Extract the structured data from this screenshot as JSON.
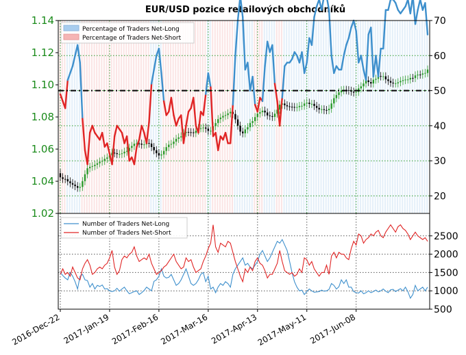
{
  "chart_data": [
    {
      "type": "candlestick-line",
      "title": "EUR/USD pozice retailových obchodníků",
      "y_left": {
        "ticks": [
          "1.02",
          "1.04",
          "1.06",
          "1.08",
          "1.10",
          "1.12",
          "1.14"
        ],
        "range": [
          1.02,
          1.14
        ]
      },
      "y_right": {
        "ticks": [
          "20",
          "30",
          "40",
          "50",
          "60",
          "70"
        ],
        "range": [
          15,
          70
        ]
      },
      "x_ticks": [
        "2016-Dec-22",
        "2017-Jan-19",
        "2017-Feb-16",
        "2017-Mar-16",
        "2017-Apr-13",
        "2017-May-11",
        "2017-Jun-08"
      ],
      "reference_line": 50,
      "grid": true,
      "legend_position": "top-left",
      "legend": [
        {
          "label": "Percentage of Traders Net-Long",
          "color": "#a8cdee"
        },
        {
          "label": "Percentage of Traders Net-Short",
          "color": "#f5b5b5"
        }
      ],
      "colors": {
        "long": "#3d8fcc",
        "short": "#e02424",
        "candle_up": "#2a9a2a",
        "candle_down": "#000000"
      },
      "net_long_percent": [
        49,
        47,
        45,
        53,
        55,
        57,
        60,
        63,
        58,
        42,
        33,
        29,
        38,
        40,
        38,
        37,
        36,
        38,
        34,
        35,
        32,
        29,
        37,
        40,
        39,
        38,
        35,
        37,
        30,
        31,
        29,
        34,
        36,
        40,
        38,
        35,
        41,
        52,
        56,
        60,
        62,
        55,
        47,
        43,
        44,
        48,
        43,
        40,
        42,
        43,
        35,
        40,
        44,
        45,
        48,
        40,
        38,
        44,
        43,
        49,
        55,
        51,
        37,
        38,
        33,
        37,
        36,
        38,
        35,
        35,
        46,
        60,
        70,
        77,
        71,
        56,
        58,
        50,
        54,
        46,
        44,
        48,
        47,
        57,
        64,
        61,
        63,
        52,
        47,
        40,
        48,
        57,
        58,
        58,
        59,
        61,
        60,
        58,
        61,
        55,
        58,
        65,
        63,
        71,
        74,
        76,
        73,
        77,
        77,
        73,
        60,
        55,
        57,
        56,
        56,
        60,
        63,
        65,
        68,
        70,
        67,
        58,
        60,
        56,
        53,
        66,
        68,
        54,
        60,
        54,
        62,
        62,
        73,
        73,
        76,
        76,
        75,
        73,
        72,
        73,
        74,
        76,
        72,
        77,
        69,
        73,
        76,
        73,
        75,
        66
      ]
    },
    {
      "type": "line",
      "y_ticks": [
        "500",
        "1000",
        "1500",
        "2000",
        "2500"
      ],
      "y_range": [
        500,
        3000
      ],
      "legend_position": "top-left",
      "grid": true,
      "series": [
        {
          "name": "Number of Traders Net-Long",
          "color": "#3d8fcc",
          "values": [
            1500,
            1420,
            1350,
            1300,
            1500,
            1400,
            1250,
            1050,
            1400,
            1450,
            1300,
            1280,
            1100,
            1200,
            1050,
            1150,
            1120,
            1160,
            1050,
            1060,
            1000,
            980,
            1000,
            1070,
            990,
            1050,
            1100,
            1000,
            920,
            950,
            980,
            1000,
            900,
            950,
            1010,
            1100,
            1050,
            1000,
            1260,
            1300,
            1400,
            1600,
            1400,
            1350,
            1370,
            1450,
            1300,
            1150,
            1200,
            1300,
            1450,
            1600,
            1400,
            1200,
            1150,
            1200,
            1300,
            1450,
            1500,
            1250,
            1400,
            1050,
            1100,
            950,
            1100,
            1200,
            1150,
            1250,
            1200,
            1100,
            1450,
            1600,
            1700,
            1800,
            1900,
            1700,
            1750,
            1650,
            1600,
            1700,
            1800,
            2000,
            2100,
            1950,
            1800,
            1900,
            2050,
            2200,
            2350,
            2300,
            2400,
            2250,
            2100,
            1800,
            1500,
            1250,
            1100,
            1000,
            1020,
            900,
            980,
            1050,
            1000,
            960,
            970,
            980,
            1020,
            990,
            1000,
            1040,
            1200,
            1150,
            1050,
            1110,
            1300,
            1200,
            1300,
            1100,
            1100,
            980,
            950,
            940,
            1000,
            920,
            950,
            1000,
            950,
            980,
            1020,
            970,
            1000,
            1050,
            990,
            950,
            1030,
            1040,
            980,
            1020,
            1060,
            1000,
            1100,
            980,
            800,
            900,
            1150,
            1000,
            1050,
            1100,
            1000,
            1100
          ]
        },
        {
          "name": "Number of Traders Net-Short",
          "color": "#e02424",
          "values": [
            1450,
            1600,
            1450,
            1500,
            1400,
            1650,
            1500,
            1350,
            1300,
            1600,
            1750,
            1850,
            1700,
            1450,
            1500,
            1600,
            1650,
            1600,
            1700,
            1750,
            1900,
            2100,
            1650,
            1450,
            1550,
            1850,
            1950,
            1900,
            2000,
            2050,
            2200,
            1950,
            1800,
            1850,
            1900,
            1850,
            2000,
            1750,
            1600,
            1450,
            1500,
            1550,
            1650,
            1700,
            1800,
            1900,
            2000,
            1800,
            1700,
            1600,
            1650,
            1900,
            1800,
            1850,
            1650,
            1500,
            1550,
            1600,
            1800,
            1950,
            2150,
            2300,
            2800,
            2200,
            2050,
            2300,
            2250,
            2200,
            2350,
            2300,
            2050,
            1800,
            1600,
            1400,
            1250,
            1600,
            1500,
            1650,
            1550,
            1800,
            1900,
            1750,
            1700,
            1550,
            1350,
            1450,
            1450,
            1600,
            1750,
            2100,
            1800,
            1550,
            1500,
            1450,
            1500,
            1400,
            1450,
            1600,
            1500,
            1900,
            1850,
            1700,
            1800,
            1600,
            1500,
            1400,
            1500,
            1500,
            1700,
            1450,
            1950,
            2050,
            1900,
            2050,
            2000,
            2000,
            1900,
            1850,
            2150,
            2350,
            2250,
            2550,
            2500,
            2300,
            2400,
            2450,
            2550,
            2500,
            2600,
            2650,
            2500,
            2450,
            2600,
            2700,
            2800,
            2700,
            2600,
            2750,
            2800,
            2700,
            2650,
            2550,
            2400,
            2500,
            2600,
            2500,
            2450,
            2400,
            2450,
            2350
          ]
        }
      ]
    }
  ]
}
